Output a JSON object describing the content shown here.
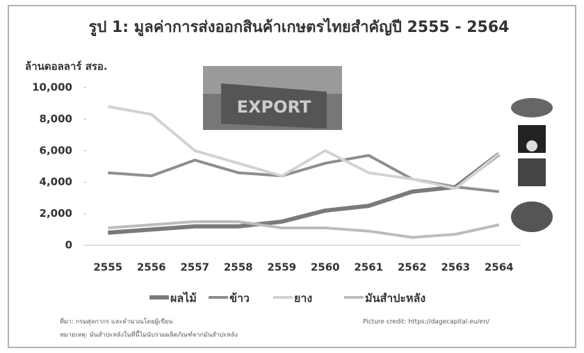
{
  "chart_data": {
    "type": "line",
    "title": "รูป 1: มูลค่าการส่งออกสินค้าเกษตรไทยสำคัญปี 2555 - 2564",
    "y_label": "ล้านดอลลาร์ สรอ.",
    "image_label": "EXPORT",
    "categories": [
      "2555",
      "2556",
      "2557",
      "2558",
      "2559",
      "2560",
      "2561",
      "2562",
      "2563",
      "2564"
    ],
    "series": [
      {
        "name": "ผลไม้",
        "color": "#7a7a7a",
        "values": [
          800,
          1000,
          1200,
          1200,
          1500,
          2200,
          2500,
          3400,
          3700,
          5800
        ]
      },
      {
        "name": "ข้าว",
        "color": "#8e8e8e",
        "values": [
          4600,
          4400,
          5400,
          4600,
          4400,
          5200,
          5700,
          4200,
          3700,
          3400
        ]
      },
      {
        "name": "ยาง",
        "color": "#d2d2d2",
        "values": [
          8800,
          8300,
          6000,
          5200,
          4400,
          6000,
          4600,
          4200,
          3600,
          5800
        ]
      },
      {
        "name": "มันสำปะหลัง",
        "color": "#bcbcbc",
        "values": [
          1100,
          1300,
          1500,
          1500,
          1100,
          1100,
          900,
          500,
          700,
          1300
        ]
      }
    ],
    "ylim": [
      0,
      10000
    ],
    "yticks": [
      0,
      {
        "value": 2000,
        "label": "2,000"
      },
      {
        "value": 4000,
        "label": "4,000"
      },
      {
        "value": 6000,
        "label": "6,000"
      },
      {
        "value": 8000,
        "label": "8,000"
      },
      {
        "value": 10000,
        "label": "10,000"
      }
    ],
    "source": "ที่มา: กรมศุลกากร และคำนวณโดยผู้เขียน",
    "note": "หมายเหตุ: มันสำปะหลังในที่นี้ไม่นับรวมผลิตภัณฑ์จากมันสำปะหลัง",
    "credit": "Picture credit: https://dagecapital.eu/en/"
  }
}
